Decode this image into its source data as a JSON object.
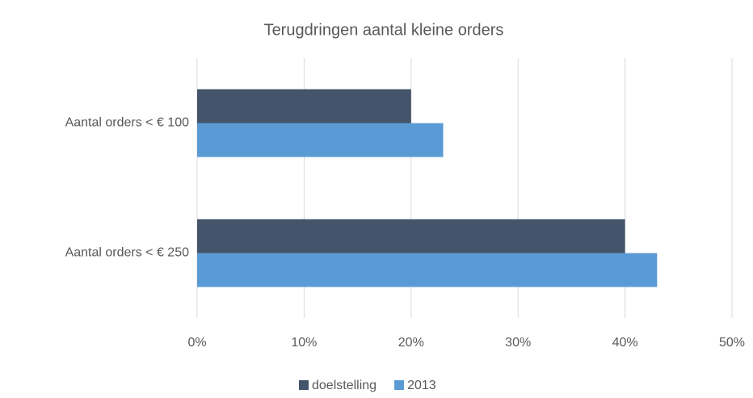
{
  "chart_data": {
    "type": "hbar",
    "title": "Terugdringen aantal kleine orders",
    "categories": [
      "Aantal orders < € 100",
      "Aantal orders < € 250"
    ],
    "series": [
      {
        "name": "doelstelling",
        "color": "#44546a",
        "values": [
          20,
          40
        ]
      },
      {
        "name": "2013",
        "color": "#5b9bd5",
        "values": [
          23,
          43
        ]
      }
    ],
    "xlim": [
      0,
      50
    ],
    "xticks": [
      {
        "value": 0,
        "label": "0%"
      },
      {
        "value": 10,
        "label": "10%"
      },
      {
        "value": 20,
        "label": "20%"
      },
      {
        "value": 30,
        "label": "30%"
      },
      {
        "value": 40,
        "label": "40%"
      },
      {
        "value": 50,
        "label": "50%"
      }
    ],
    "grid": true,
    "legend": "bottom"
  }
}
